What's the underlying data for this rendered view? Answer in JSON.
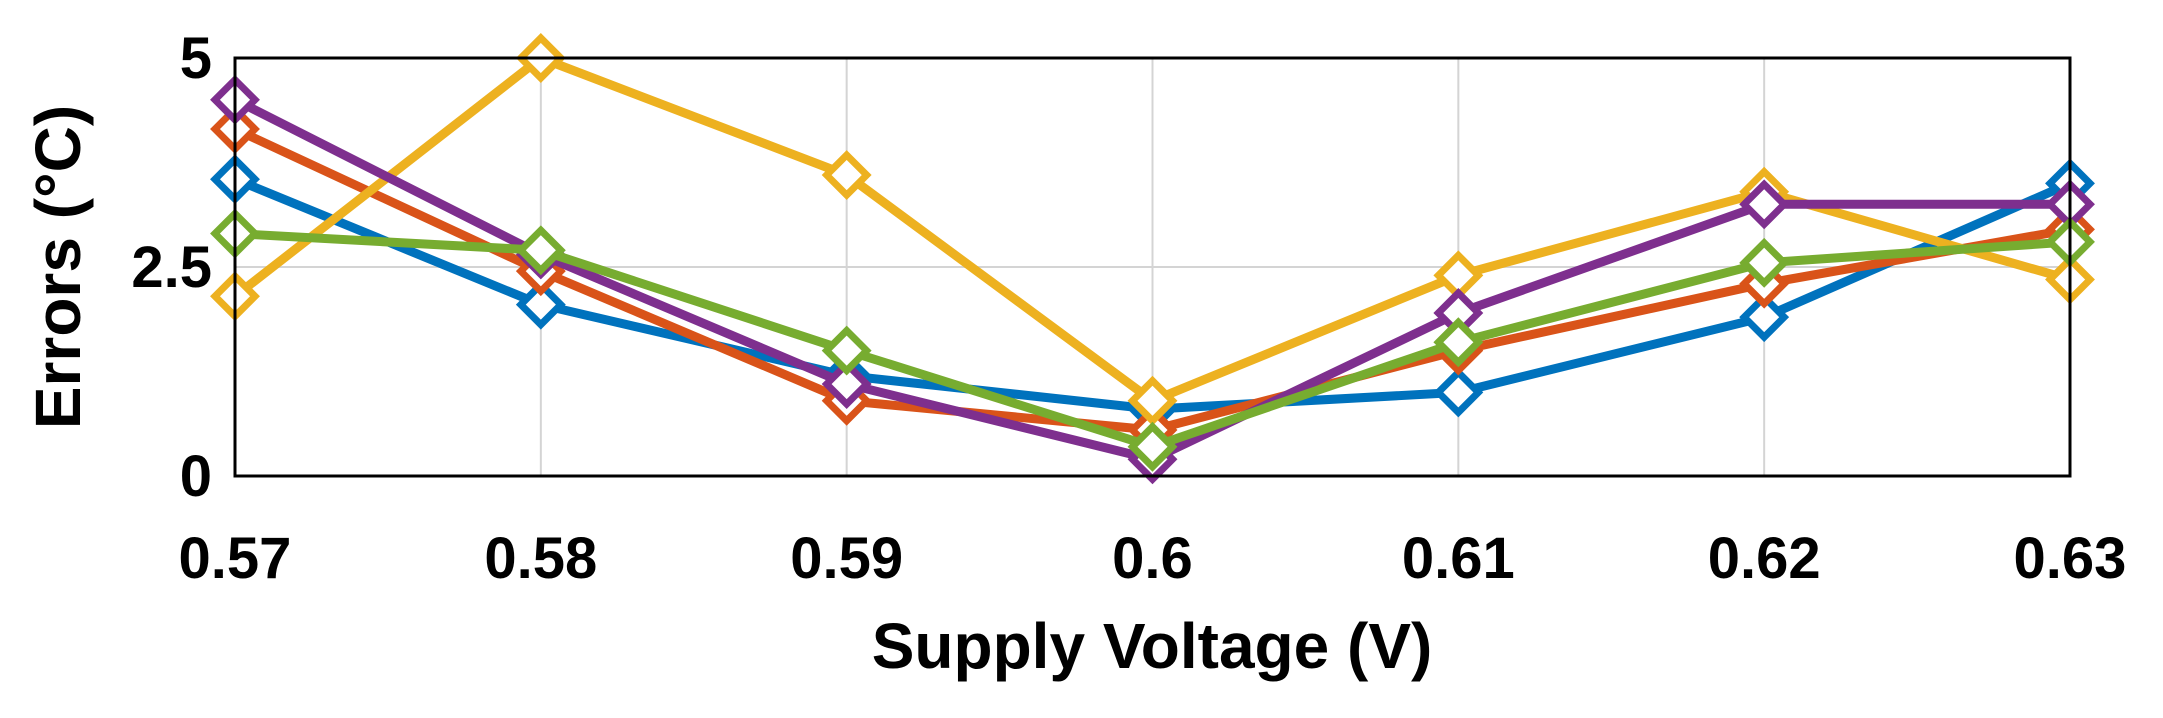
{
  "chart_data": {
    "type": "line",
    "title": "",
    "xlabel": "Supply Voltage (V)",
    "ylabel": "Errors (°C)",
    "x": [
      0.57,
      0.58,
      0.59,
      0.6,
      0.61,
      0.62,
      0.63
    ],
    "x_tick_labels": [
      "0.57",
      "0.58",
      "0.59",
      "0.6",
      "0.61",
      "0.62",
      "0.63"
    ],
    "y_ticks": [
      0,
      2.5,
      5
    ],
    "y_tick_labels": [
      "0",
      "2.5",
      "5"
    ],
    "xlim": [
      0.57,
      0.63
    ],
    "ylim": [
      0,
      5
    ],
    "grid": true,
    "marker": "diamond",
    "series": [
      {
        "name": "blue",
        "color": "#0072BD",
        "values": [
          3.55,
          2.05,
          1.2,
          0.8,
          1.0,
          1.9,
          3.5
        ]
      },
      {
        "name": "orange",
        "color": "#D95319",
        "values": [
          4.15,
          2.45,
          0.9,
          0.55,
          1.5,
          2.3,
          2.95
        ]
      },
      {
        "name": "yellow",
        "color": "#EDB120",
        "values": [
          2.15,
          5.0,
          3.6,
          0.9,
          2.4,
          3.4,
          2.35
        ]
      },
      {
        "name": "purple",
        "color": "#7E2F8E",
        "values": [
          4.5,
          2.65,
          1.1,
          0.2,
          1.95,
          3.25,
          3.25
        ]
      },
      {
        "name": "green",
        "color": "#77AC30",
        "values": [
          2.9,
          2.7,
          1.5,
          0.35,
          1.6,
          2.55,
          2.8
        ]
      }
    ]
  }
}
